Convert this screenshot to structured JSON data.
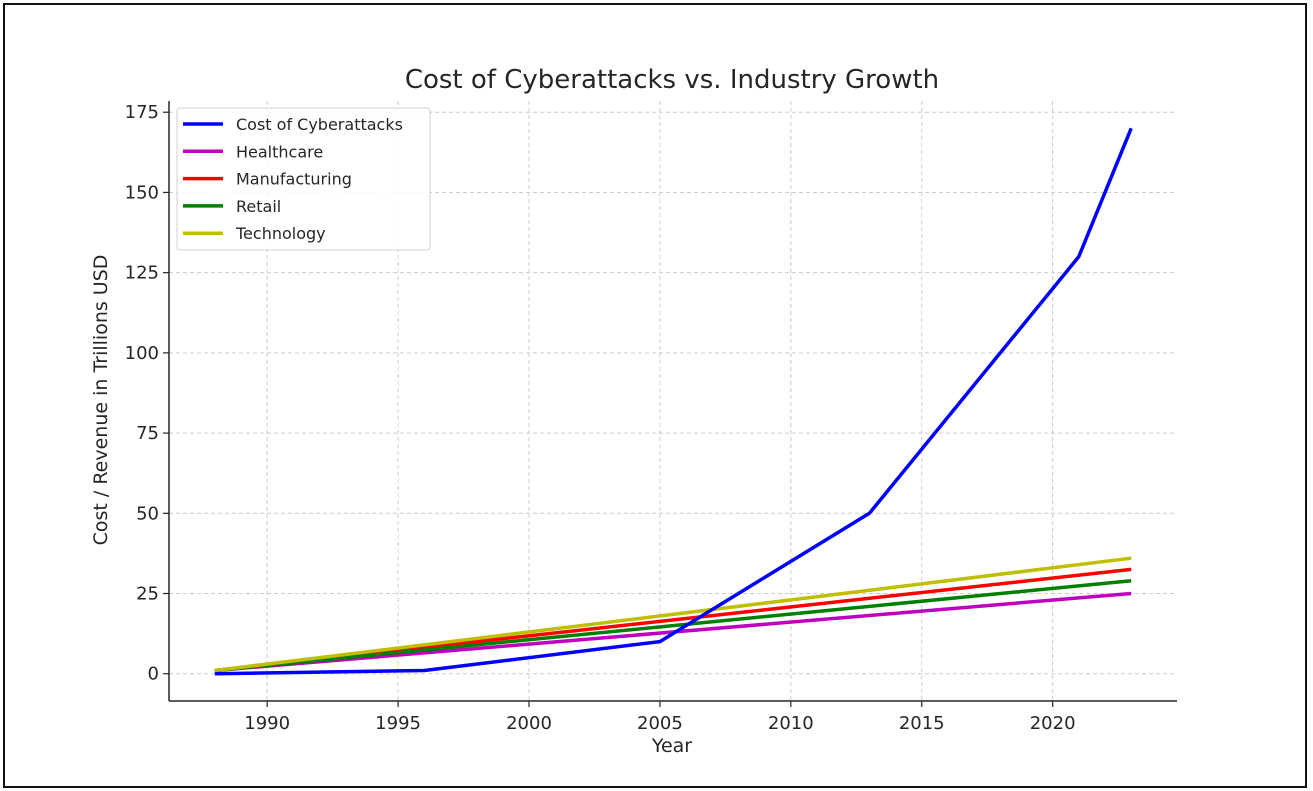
{
  "chart_data": {
    "type": "line",
    "title": "Cost of Cyberattacks vs. Industry Growth",
    "xlabel": "Year",
    "ylabel": "Cost / Revenue in Trillions USD",
    "xlim": [
      1986.25,
      2024.75
    ],
    "ylim": [
      -8.5,
      178.5
    ],
    "xticks": [
      1990,
      1995,
      2000,
      2005,
      2010,
      2015,
      2020
    ],
    "yticks": [
      0,
      25,
      50,
      75,
      100,
      125,
      150,
      175
    ],
    "grid": true,
    "legend_position": "top-left",
    "series": [
      {
        "name": "Cost of Cyberattacks",
        "color": "#0000ff",
        "x": [
          1988,
          1996,
          2005,
          2013,
          2021,
          2023
        ],
        "y": [
          0,
          1,
          10,
          50,
          130,
          170
        ]
      },
      {
        "name": "Healthcare",
        "color": "#bf00bf",
        "x": [
          1988,
          2023
        ],
        "y": [
          1,
          25
        ]
      },
      {
        "name": "Manufacturing",
        "color": "#ff0000",
        "x": [
          1988,
          2023
        ],
        "y": [
          1,
          32.5
        ]
      },
      {
        "name": "Retail",
        "color": "#008000",
        "x": [
          1988,
          2023
        ],
        "y": [
          1,
          29
        ]
      },
      {
        "name": "Technology",
        "color": "#bfbf00",
        "x": [
          1988,
          2023
        ],
        "y": [
          1,
          36
        ]
      }
    ]
  }
}
